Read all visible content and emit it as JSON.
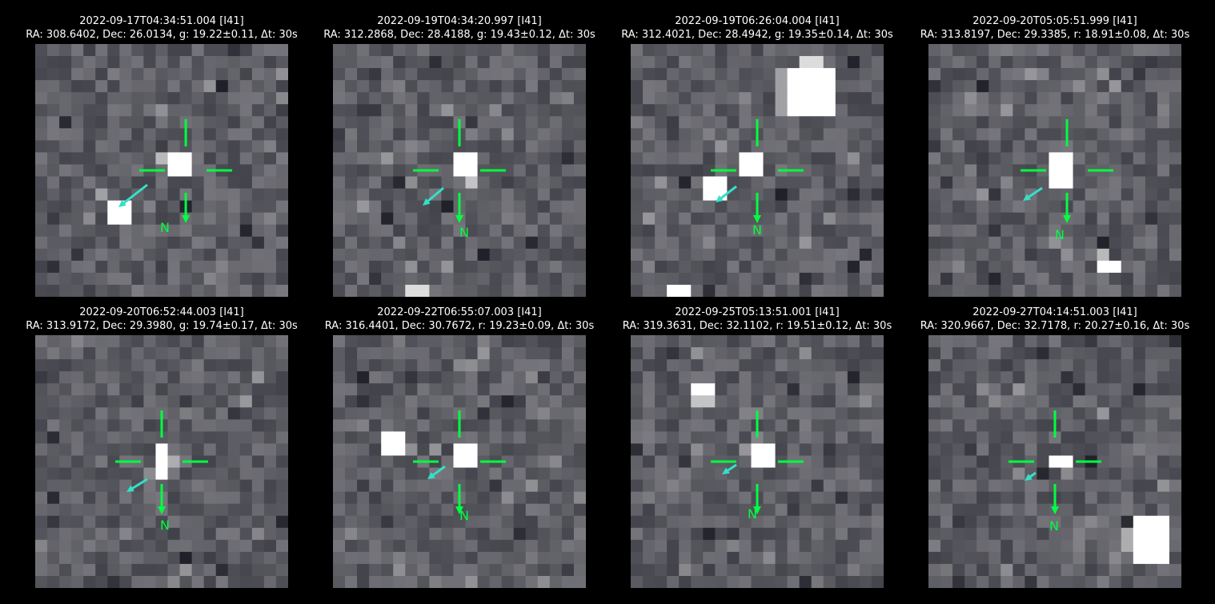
{
  "palette": {
    "background": "#000000",
    "marker": "#00ff40",
    "motion_arrow": "#33e0c8"
  },
  "icons": {
    "crosshair": "crosshair-icon",
    "north": "north-arrow-icon",
    "motion": "motion-arrow-icon"
  },
  "stamps": [
    {
      "timestamp": "2022-09-17T04:34:51.004 [I41]",
      "details": "RA: 308.6402, Dec: 26.0134, g: 19.22±0.11, Δt: 30s",
      "north_label": "N"
    },
    {
      "timestamp": "2022-09-19T04:34:20.997 [I41]",
      "details": "RA: 312.2868, Dec: 28.4188, g: 19.43±0.12, Δt: 30s",
      "north_label": "N"
    },
    {
      "timestamp": "2022-09-19T06:26:04.004 [I41]",
      "details": "RA: 312.4021, Dec: 28.4942, g: 19.35±0.14, Δt: 30s",
      "north_label": "N"
    },
    {
      "timestamp": "2022-09-20T05:05:51.999 [I41]",
      "details": "RA: 313.8197, Dec: 29.3385, r: 18.91±0.08, Δt: 30s",
      "north_label": "N"
    },
    {
      "timestamp": "2022-09-20T06:52:44.003 [I41]",
      "details": "RA: 313.9172, Dec: 29.3980, g: 19.74±0.17, Δt: 30s",
      "north_label": "N"
    },
    {
      "timestamp": "2022-09-22T06:55:07.003 [I41]",
      "details": "RA: 316.4401, Dec: 30.7672, r: 19.23±0.09, Δt: 30s",
      "north_label": "N"
    },
    {
      "timestamp": "2022-09-25T05:13:51.001 [I41]",
      "details": "RA: 319.3631, Dec: 32.1102, r: 19.51±0.12, Δt: 30s",
      "north_label": "N"
    },
    {
      "timestamp": "2022-09-27T04:14:51.003 [I41]",
      "details": "RA: 320.9667, Dec: 32.7178, r: 20.27±0.16, Δt: 30s",
      "north_label": "N"
    }
  ]
}
